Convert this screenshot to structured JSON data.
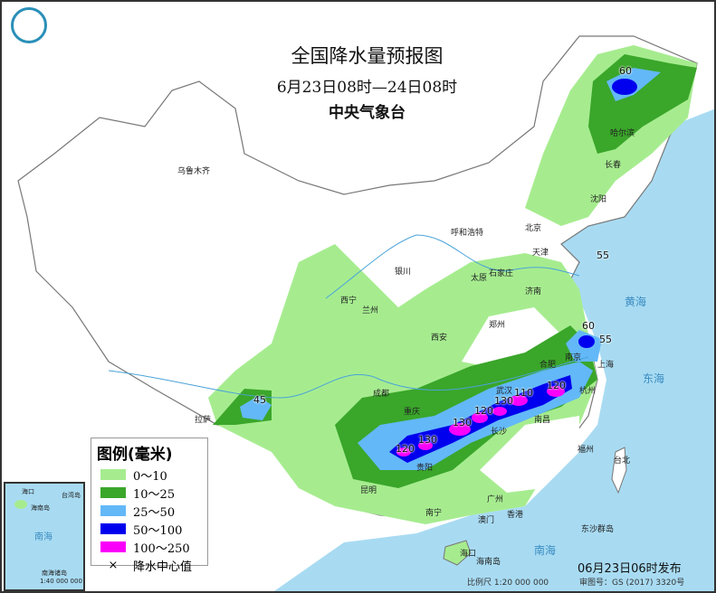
{
  "header": {
    "title": "全国降水量预报图",
    "period": "6月23日08时—24日08时",
    "issuer": "中央气象台"
  },
  "legend": {
    "title": "图例(毫米)",
    "items": [
      {
        "label": "0～10",
        "color": "#a6ec8f"
      },
      {
        "label": "10～25",
        "color": "#3aa62a"
      },
      {
        "label": "25～50",
        "color": "#63b8f8"
      },
      {
        "label": "50～100",
        "color": "#0000ee"
      },
      {
        "label": "100～250",
        "color": "#fa00fa"
      },
      {
        "label": "降水中心值",
        "symbol": "×"
      }
    ]
  },
  "centers": [
    "60",
    "55",
    "60",
    "55",
    "45",
    "120",
    "130",
    "130",
    "120",
    "130",
    "110",
    "120"
  ],
  "cities": [
    "乌鲁木齐",
    "哈尔滨",
    "长春",
    "沈阳",
    "北京",
    "天津",
    "呼和浩特",
    "石家庄",
    "太原",
    "济南",
    "银川",
    "西宁",
    "兰州",
    "郑州",
    "西安",
    "合肥",
    "南京",
    "上海",
    "成都",
    "武汉",
    "杭州",
    "重庆",
    "长沙",
    "南昌",
    "拉萨",
    "福州",
    "台北",
    "贵阳",
    "昆明",
    "南宁",
    "广州",
    "香港",
    "澳门",
    "海口",
    "海南岛",
    "东沙群岛"
  ],
  "seas": [
    "黄海",
    "东海",
    "南海"
  ],
  "inset": {
    "sea": "南海",
    "islands": "南海诸岛",
    "scale": "1:40 000 000",
    "labels": [
      "海口",
      "海南岛",
      "台湾岛"
    ]
  },
  "footer": {
    "issued": "06月23日06时发布",
    "scale": "比例尺 1:20 000 000",
    "review": "审图号：GS (2017) 3320号"
  },
  "colors": {
    "sea": "#a8dbf2",
    "land": "#ffffff",
    "border": "#888888"
  }
}
